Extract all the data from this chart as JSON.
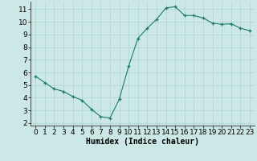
{
  "x": [
    0,
    1,
    2,
    3,
    4,
    5,
    6,
    7,
    8,
    9,
    10,
    11,
    12,
    13,
    14,
    15,
    16,
    17,
    18,
    19,
    20,
    21,
    22,
    23
  ],
  "y": [
    5.7,
    5.2,
    4.7,
    4.5,
    4.1,
    3.8,
    3.1,
    2.5,
    2.4,
    3.9,
    6.5,
    8.7,
    9.5,
    10.2,
    11.1,
    11.2,
    10.5,
    10.5,
    10.3,
    9.9,
    9.8,
    9.85,
    9.5,
    9.3
  ],
  "xlabel": "Humidex (Indice chaleur)",
  "ylim": [
    1.8,
    11.6
  ],
  "xlim": [
    -0.5,
    23.5
  ],
  "xticks": [
    0,
    1,
    2,
    3,
    4,
    5,
    6,
    7,
    8,
    9,
    10,
    11,
    12,
    13,
    14,
    15,
    16,
    17,
    18,
    19,
    20,
    21,
    22,
    23
  ],
  "yticks": [
    2,
    3,
    4,
    5,
    6,
    7,
    8,
    9,
    10,
    11
  ],
  "line_color": "#1a7a6e",
  "marker_color": "#1a7a6e",
  "bg_color": "#cce8e6",
  "grid_color": "#aed4d0",
  "xlabel_fontsize": 7,
  "tick_fontsize": 6.5
}
